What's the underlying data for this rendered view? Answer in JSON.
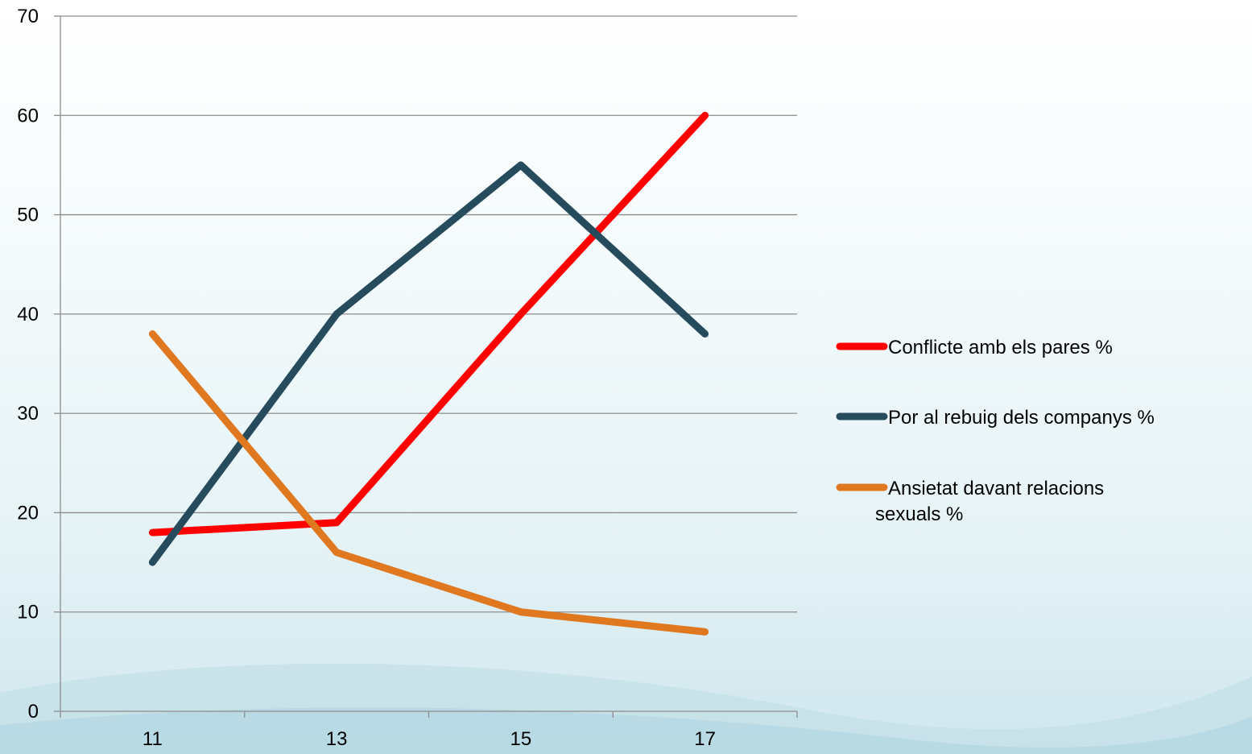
{
  "chart_data": {
    "type": "line",
    "title": "",
    "xlabel": "",
    "ylabel": "",
    "x": [
      11,
      13,
      15,
      17
    ],
    "x_tick_labels": [
      "11",
      "13",
      "15",
      "17"
    ],
    "ylim": [
      0,
      70
    ],
    "y_ticks": [
      0,
      10,
      20,
      30,
      40,
      50,
      60,
      70
    ],
    "y_tick_labels": [
      "0",
      "10",
      "20",
      "30",
      "40",
      "50",
      "60",
      "70"
    ],
    "grid": true,
    "legend_position": "right",
    "series": [
      {
        "name": "Conflicte amb els pares %",
        "name_lines": [
          "Conflicte amb els pares %"
        ],
        "color": "#ff0000",
        "values": [
          18,
          19,
          40,
          60
        ]
      },
      {
        "name": "Por al rebuig dels companys %",
        "name_lines": [
          "Por al rebuig dels companys %"
        ],
        "color": "#264b5c",
        "values": [
          15,
          40,
          55,
          38
        ]
      },
      {
        "name": "Ansietat davant relacions sexuals %",
        "name_lines": [
          "Ansietat davant relacions",
          "sexuals %"
        ],
        "color": "#e07820",
        "values": [
          38,
          16,
          10,
          8
        ]
      }
    ]
  }
}
